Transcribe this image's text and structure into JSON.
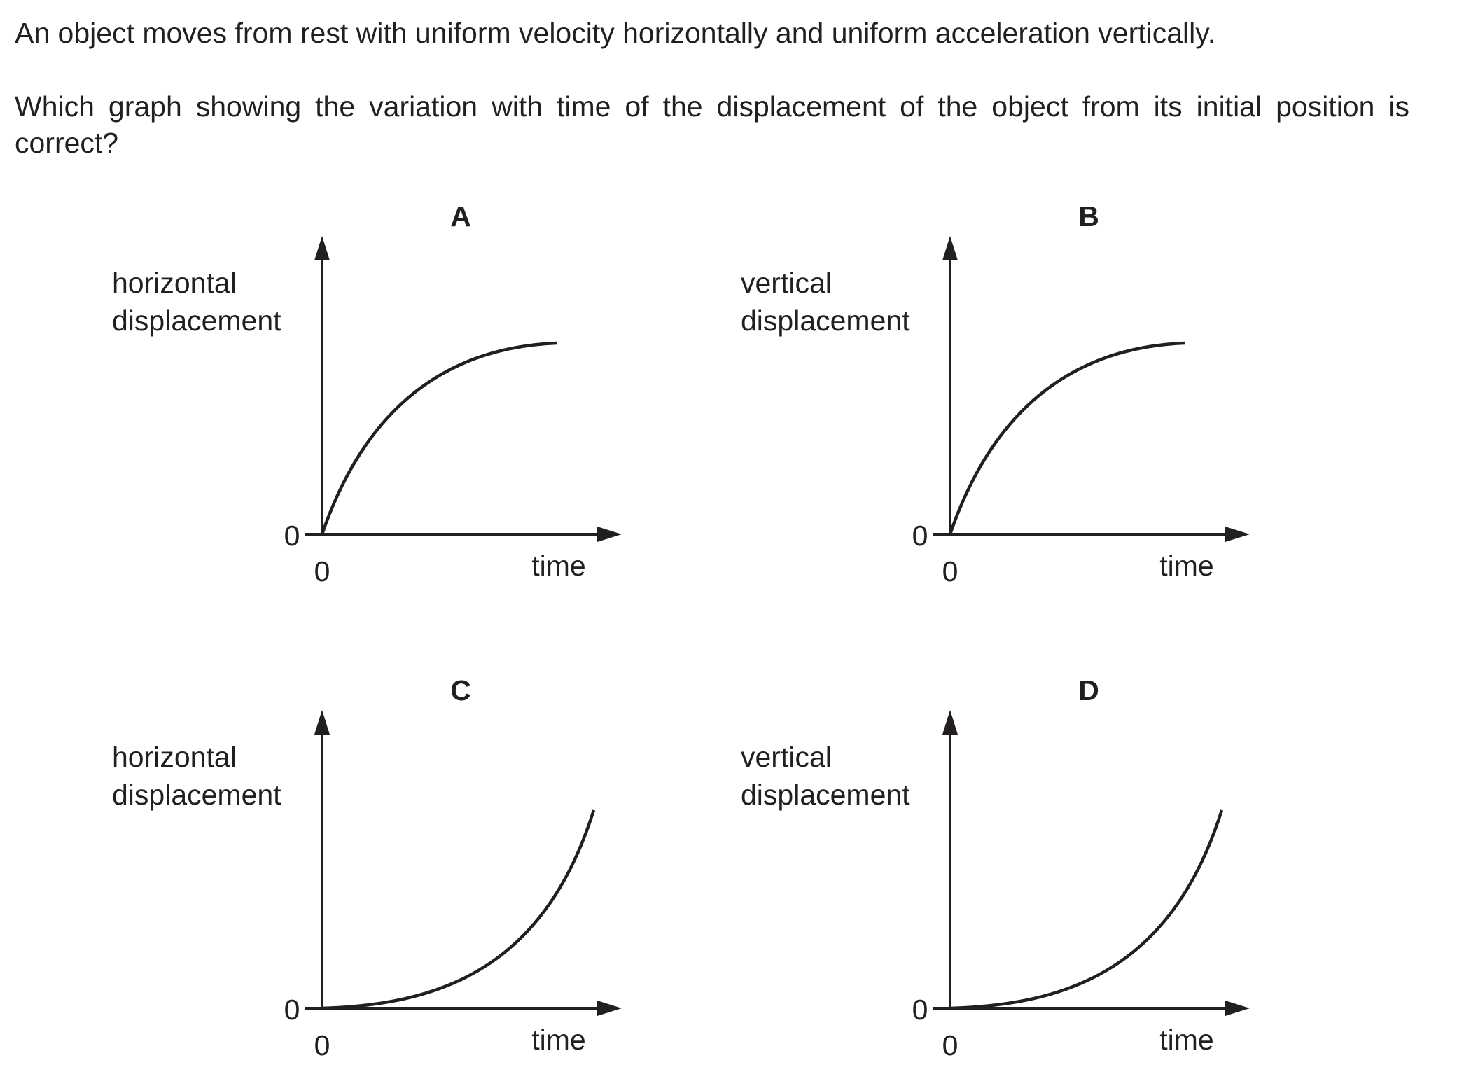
{
  "question": {
    "line1": "An object moves from rest with uniform velocity horizontally and uniform acceleration vertically.",
    "line2": "Which graph showing the variation with time of the displacement of the object from its initial position is correct?"
  },
  "graphs": [
    {
      "letter": "A",
      "ylabel_line1": "horizontal",
      "ylabel_line2": "displacement",
      "xlabel": "time",
      "y_origin": "0",
      "x_origin": "0",
      "curve_shape": "decelerating"
    },
    {
      "letter": "B",
      "ylabel_line1": "vertical",
      "ylabel_line2": "displacement",
      "xlabel": "time",
      "y_origin": "0",
      "x_origin": "0",
      "curve_shape": "decelerating"
    },
    {
      "letter": "C",
      "ylabel_line1": "horizontal",
      "ylabel_line2": "displacement",
      "xlabel": "time",
      "y_origin": "0",
      "x_origin": "0",
      "curve_shape": "accelerating"
    },
    {
      "letter": "D",
      "ylabel_line1": "vertical",
      "ylabel_line2": "displacement",
      "xlabel": "time",
      "y_origin": "0",
      "x_origin": "0",
      "curve_shape": "accelerating"
    }
  ]
}
